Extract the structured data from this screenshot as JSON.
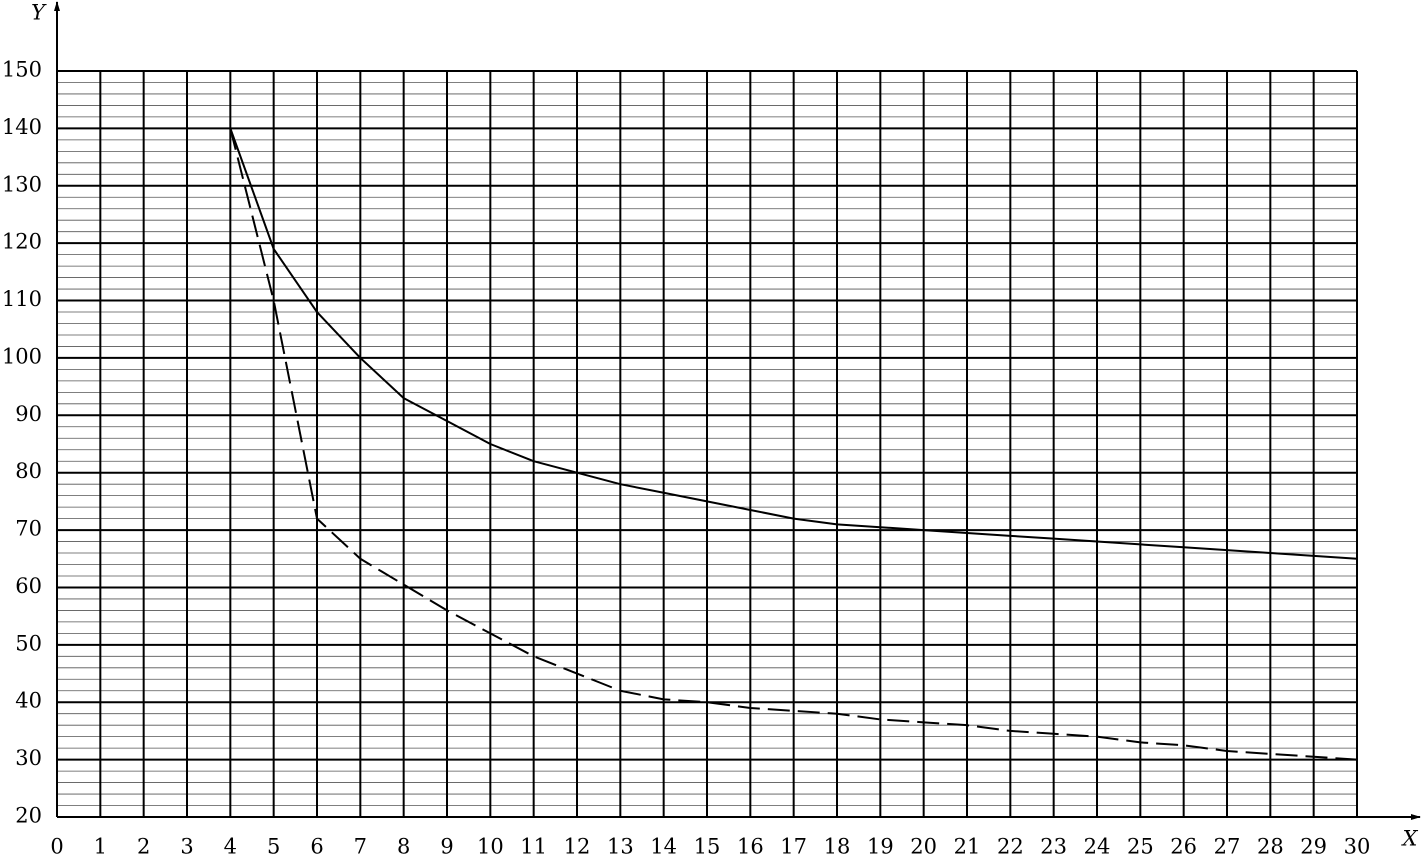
{
  "chart_data": {
    "type": "line",
    "xlabel": "X",
    "ylabel": "Y",
    "x": [
      4,
      5,
      6,
      7,
      8,
      9,
      10,
      11,
      12,
      13,
      14,
      15,
      16,
      17,
      18,
      19,
      20,
      21,
      22,
      23,
      24,
      25,
      26,
      27,
      28,
      29,
      30
    ],
    "series": [
      {
        "color": "#000000",
        "linestyle": "solid",
        "values": [
          140,
          119,
          108,
          100,
          93,
          89,
          85,
          82,
          80,
          78,
          76.5,
          75,
          73.5,
          72,
          71,
          70.5,
          70,
          69.5,
          69,
          68.5,
          68,
          67.5,
          67,
          66.5,
          66,
          65.5,
          65
        ]
      },
      {
        "color": "#000000",
        "linestyle": "dashed",
        "values": [
          140,
          110,
          72,
          65,
          60.5,
          56,
          52,
          48,
          45,
          42,
          40.5,
          40,
          39,
          38.5,
          38,
          37,
          36.5,
          36,
          35,
          34.5,
          34,
          33,
          32.5,
          31.5,
          31,
          30.5,
          30
        ]
      }
    ],
    "xlim": [
      0,
      30
    ],
    "ylim": [
      20,
      150
    ],
    "xticks": [
      0,
      1,
      2,
      3,
      4,
      5,
      6,
      7,
      8,
      9,
      10,
      11,
      12,
      13,
      14,
      15,
      16,
      17,
      18,
      19,
      20,
      21,
      22,
      23,
      24,
      25,
      26,
      27,
      28,
      29,
      30
    ],
    "yticks": [
      20,
      30,
      40,
      50,
      60,
      70,
      80,
      90,
      100,
      110,
      120,
      130,
      140,
      150
    ],
    "grid": true,
    "minor_grid_step": 2
  }
}
